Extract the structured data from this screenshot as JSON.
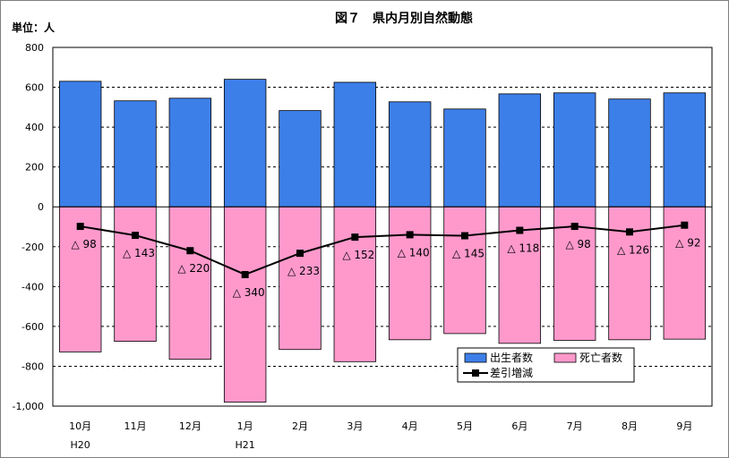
{
  "chart_data": {
    "type": "bar",
    "title": "図７　県内月別自然動態",
    "unit_label": "単位：人",
    "categories": [
      "10月",
      "11月",
      "12月",
      "1月",
      "2月",
      "3月",
      "4月",
      "5月",
      "6月",
      "7月",
      "8月",
      "9月"
    ],
    "year_labels": [
      {
        "category_index": 0,
        "label": "H20"
      },
      {
        "category_index": 3,
        "label": "H21"
      }
    ],
    "ylim": [
      -1000,
      800
    ],
    "yticks": [
      800,
      600,
      400,
      200,
      0,
      -200,
      -400,
      -600,
      -800,
      -1000
    ],
    "ytick_labels": [
      "800",
      "600",
      "400",
      "200",
      "0",
      "-200",
      "-400",
      "-600",
      "-800",
      "-1,000"
    ],
    "grid": true,
    "legend_position": "bottom-right",
    "series": [
      {
        "name": "出生者数",
        "kind": "bar",
        "color": "#3d7fe8",
        "values": [
          630,
          532,
          545,
          640,
          483,
          625,
          527,
          491,
          567,
          572,
          541,
          572
        ]
      },
      {
        "name": "死亡者数",
        "kind": "bar",
        "color": "#ff99cc",
        "values": [
          -728,
          -675,
          -765,
          -980,
          -716,
          -777,
          -667,
          -636,
          -685,
          -670,
          -667,
          -664
        ]
      },
      {
        "name": "差引増減",
        "kind": "line",
        "color": "#000000",
        "values": [
          -98,
          -143,
          -220,
          -340,
          -233,
          -152,
          -140,
          -145,
          -118,
          -98,
          -126,
          -92
        ]
      }
    ],
    "data_labels": [
      "△ 98",
      "△ 143",
      "△ 220",
      "△ 340",
      "△ 233",
      "△ 152",
      "△ 140",
      "△ 145",
      "△ 118",
      "△ 98",
      "△ 126",
      "△ 92"
    ]
  }
}
